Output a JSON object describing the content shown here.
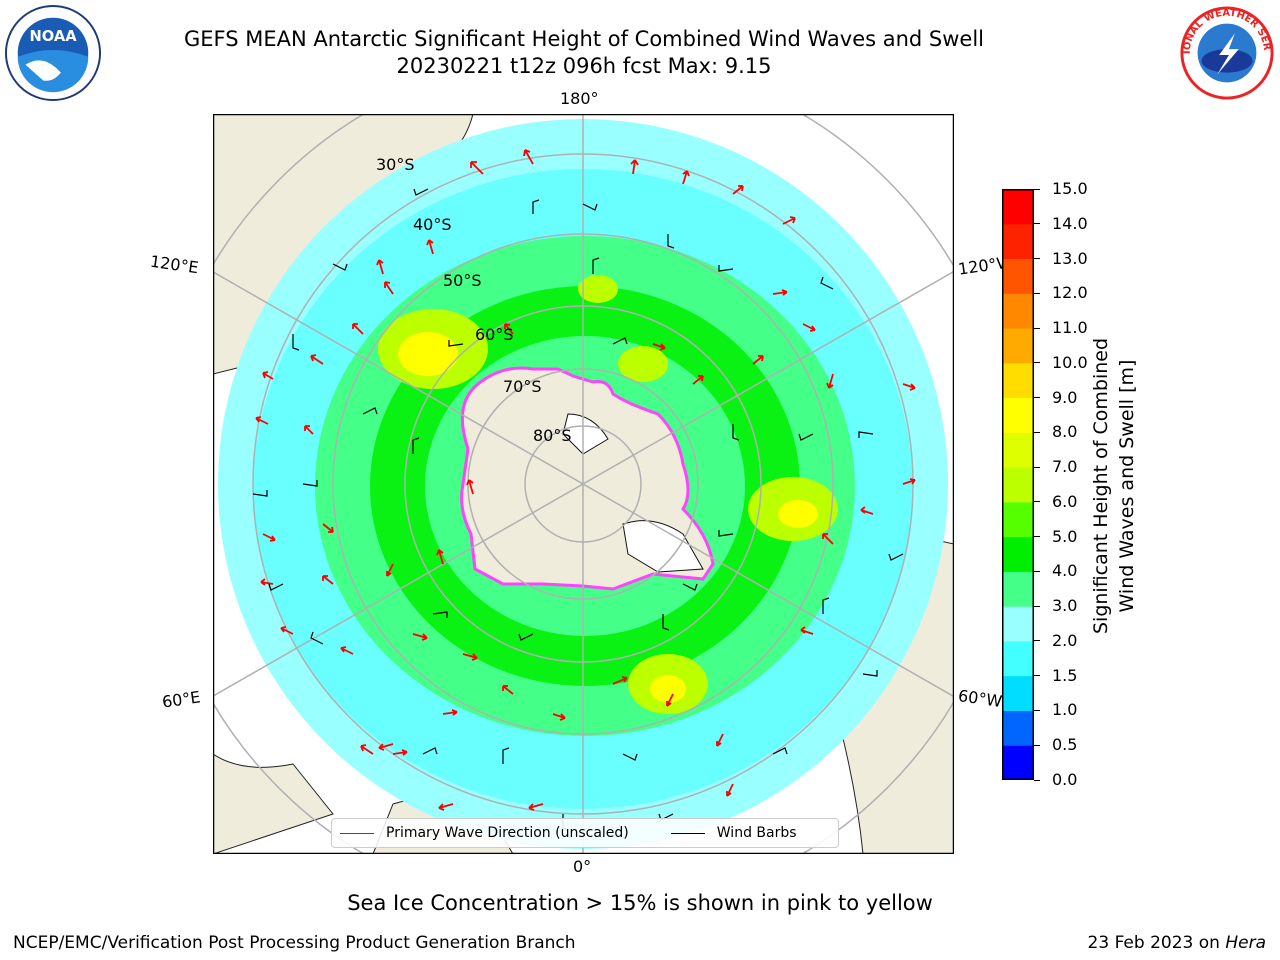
{
  "title": {
    "line1": "GEFS MEAN Antarctic Significant Height of Combined Wind Waves and Swell",
    "line2": "20230221 t12z 096h fcst   Max: 9.15"
  },
  "logos": {
    "noaa": {
      "text": "NOAA",
      "icon": "noaa-logo"
    },
    "nws": {
      "text": "NATIONAL WEATHER SERVICE",
      "icon": "nws-logo"
    }
  },
  "map": {
    "projection": "south-polar-stereographic",
    "longitude_labels": {
      "top": "180°",
      "bottom": "0°",
      "upper_left": "120°E",
      "lower_left": "60°E",
      "upper_right": "120°W",
      "lower_right": "60°W"
    },
    "latitude_labels": [
      "30°S",
      "40°S",
      "50°S",
      "60°S",
      "70°S",
      "80°S"
    ],
    "colors": {
      "land": "#efecdc",
      "grid": "#b0b0b0",
      "wave_arrow": "#ff0000",
      "wind_barb": "#000000",
      "sea_ice": "#ff44ff"
    }
  },
  "colorbar": {
    "label_line1": "Significant Height of Combined",
    "label_line2": "Wind Waves and Swell [m]",
    "ticks": [
      "0.0",
      "0.5",
      "1.0",
      "1.5",
      "2.0",
      "3.0",
      "4.0",
      "5.0",
      "6.0",
      "7.0",
      "8.0",
      "9.0",
      "10.0",
      "11.0",
      "12.0",
      "13.0",
      "14.0",
      "15.0"
    ],
    "colors": [
      "#0000ff",
      "#0066ff",
      "#00ddff",
      "#44ffff",
      "#99ffff",
      "#44ff88",
      "#00ee00",
      "#55ff00",
      "#bbff00",
      "#ddff00",
      "#ffff00",
      "#ffdd00",
      "#ffaa00",
      "#ff8800",
      "#ff5500",
      "#ff2200",
      "#ff0000"
    ]
  },
  "legend": {
    "wave_direction": "Primary Wave Direction (unscaled)",
    "wind_barbs": "Wind Barbs"
  },
  "sea_ice_note": "Sea Ice Concentration > 15% is shown in pink to yellow",
  "footer": {
    "left": "NCEP/EMC/Verification Post Processing Product Generation Branch",
    "date": "23 Feb 2023 on",
    "machine": "Hera"
  }
}
